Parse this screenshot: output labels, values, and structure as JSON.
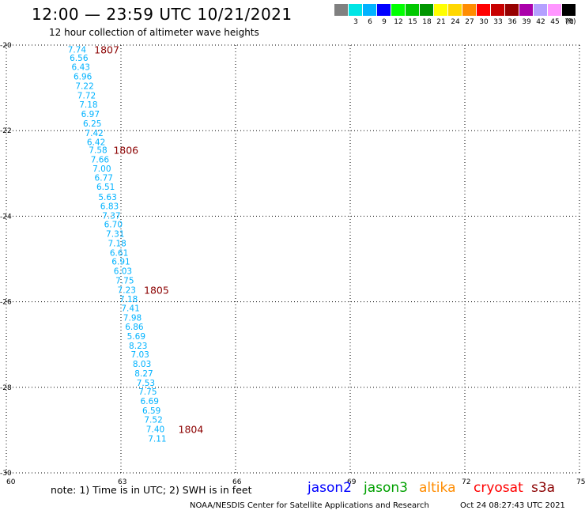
{
  "header": {
    "title": "12:00 — 23:59 UTC 10/21/2021",
    "subtitle": "12 hour collection of altimeter wave heights"
  },
  "legend": {
    "unit": "(ft)",
    "bins": [
      {
        "label": "",
        "color": "#808080"
      },
      {
        "label": "3",
        "color": "#00e5e5"
      },
      {
        "label": "6",
        "color": "#00b2ff"
      },
      {
        "label": "9",
        "color": "#0000ff"
      },
      {
        "label": "12",
        "color": "#00ff00"
      },
      {
        "label": "15",
        "color": "#00c800"
      },
      {
        "label": "18",
        "color": "#009600"
      },
      {
        "label": "21",
        "color": "#ffff00"
      },
      {
        "label": "24",
        "color": "#ffd700"
      },
      {
        "label": "27",
        "color": "#ff8c00"
      },
      {
        "label": "30",
        "color": "#ff0000"
      },
      {
        "label": "33",
        "color": "#c80000"
      },
      {
        "label": "36",
        "color": "#960000"
      },
      {
        "label": "39",
        "color": "#aa00aa"
      },
      {
        "label": "42",
        "color": "#b4a0ff"
      },
      {
        "label": "45",
        "color": "#ff96ff"
      },
      {
        "label": "70",
        "color": "#000000"
      }
    ]
  },
  "chart_data": {
    "type": "scatter",
    "xlim": [
      60,
      75
    ],
    "ylim": [
      -30,
      -20
    ],
    "x_ticks": [
      "60",
      "63",
      "66",
      "69",
      "72",
      "75"
    ],
    "y_ticks": [
      "-20",
      "-22",
      "-24",
      "-26",
      "-28",
      "-30"
    ],
    "grid": true,
    "point_color": "#00b2ff",
    "time_color": "#8b0000",
    "points": [
      {
        "x": 61.85,
        "y": -20.1,
        "swh": "7.74"
      },
      {
        "x": 61.9,
        "y": -20.3,
        "swh": "6.56"
      },
      {
        "x": 61.95,
        "y": -20.51,
        "swh": "6.43"
      },
      {
        "x": 62.0,
        "y": -20.73,
        "swh": "6.96"
      },
      {
        "x": 62.05,
        "y": -20.95,
        "swh": "7.22"
      },
      {
        "x": 62.1,
        "y": -21.17,
        "swh": "7.72"
      },
      {
        "x": 62.15,
        "y": -21.39,
        "swh": "7.18"
      },
      {
        "x": 62.2,
        "y": -21.61,
        "swh": "6.97"
      },
      {
        "x": 62.25,
        "y": -21.83,
        "swh": "6.25"
      },
      {
        "x": 62.3,
        "y": -22.05,
        "swh": "7.42"
      },
      {
        "x": 62.35,
        "y": -22.26,
        "swh": "6.42"
      },
      {
        "x": 62.4,
        "y": -22.45,
        "swh": "7.58"
      },
      {
        "x": 62.45,
        "y": -22.67,
        "swh": "7.66"
      },
      {
        "x": 62.5,
        "y": -22.88,
        "swh": "7.00"
      },
      {
        "x": 62.55,
        "y": -23.1,
        "swh": "6.77"
      },
      {
        "x": 62.6,
        "y": -23.31,
        "swh": "6.51"
      },
      {
        "x": 62.65,
        "y": -23.55,
        "swh": "5.63"
      },
      {
        "x": 62.7,
        "y": -23.76,
        "swh": "6.83"
      },
      {
        "x": 62.75,
        "y": -23.98,
        "swh": "7.37"
      },
      {
        "x": 62.8,
        "y": -24.19,
        "swh": "6.70"
      },
      {
        "x": 62.85,
        "y": -24.41,
        "swh": "7.31"
      },
      {
        "x": 62.9,
        "y": -24.63,
        "swh": "7.18"
      },
      {
        "x": 62.95,
        "y": -24.85,
        "swh": "6.61"
      },
      {
        "x": 63.0,
        "y": -25.06,
        "swh": "6.91"
      },
      {
        "x": 63.05,
        "y": -25.28,
        "swh": "6.03"
      },
      {
        "x": 63.1,
        "y": -25.5,
        "swh": "7.75"
      },
      {
        "x": 63.15,
        "y": -25.72,
        "swh": "7.23"
      },
      {
        "x": 63.2,
        "y": -25.93,
        "swh": "7.18"
      },
      {
        "x": 63.25,
        "y": -26.15,
        "swh": "7.41"
      },
      {
        "x": 63.3,
        "y": -26.37,
        "swh": "7.98"
      },
      {
        "x": 63.35,
        "y": -26.58,
        "swh": "6.86"
      },
      {
        "x": 63.4,
        "y": -26.8,
        "swh": "5.69"
      },
      {
        "x": 63.45,
        "y": -27.02,
        "swh": "8.23"
      },
      {
        "x": 63.5,
        "y": -27.23,
        "swh": "7.03"
      },
      {
        "x": 63.55,
        "y": -27.45,
        "swh": "8.03"
      },
      {
        "x": 63.6,
        "y": -27.67,
        "swh": "8.27"
      },
      {
        "x": 63.65,
        "y": -27.89,
        "swh": "7.53"
      },
      {
        "x": 63.7,
        "y": -28.1,
        "swh": "7.75"
      },
      {
        "x": 63.75,
        "y": -28.32,
        "swh": "6.69"
      },
      {
        "x": 63.8,
        "y": -28.54,
        "swh": "6.59"
      },
      {
        "x": 63.85,
        "y": -28.75,
        "swh": "7.52"
      },
      {
        "x": 63.9,
        "y": -28.97,
        "swh": "7.40"
      },
      {
        "x": 63.95,
        "y": -29.2,
        "swh": "7.11"
      }
    ],
    "time_labels": [
      {
        "x": 62.3,
        "y": -20.1,
        "text": "1807"
      },
      {
        "x": 62.8,
        "y": -22.45,
        "text": "1806"
      },
      {
        "x": 63.6,
        "y": -25.72,
        "text": "1805"
      },
      {
        "x": 64.5,
        "y": -28.97,
        "text": "1804"
      }
    ]
  },
  "note": "note:  1) Time is in UTC;  2) SWH is in feet",
  "satellites": [
    {
      "name": "jason2",
      "color": "#0000ff"
    },
    {
      "name": "jason3",
      "color": "#00a000"
    },
    {
      "name": "altika",
      "color": "#ff8c00"
    },
    {
      "name": "cryosat",
      "color": "#ff0000"
    },
    {
      "name": "s3a",
      "color": "#8b0000"
    }
  ],
  "footer": {
    "credit": "NOAA/NESDIS Center for Satellite Applications and Research",
    "timestamp": "Oct 24 08:27:43 UTC 2021"
  }
}
